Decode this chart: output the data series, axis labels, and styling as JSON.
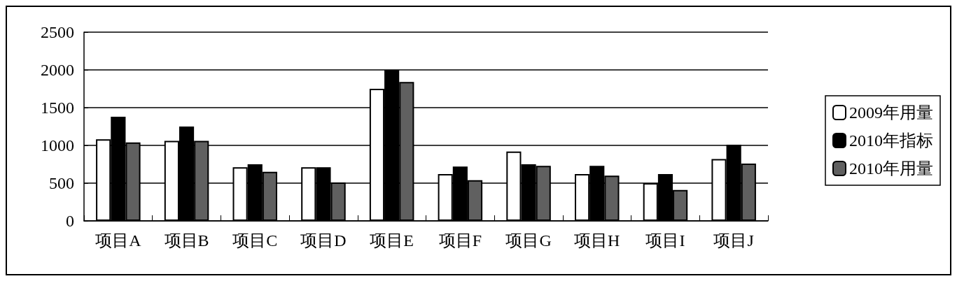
{
  "chart_data": {
    "type": "bar",
    "categories": [
      "项目A",
      "项目B",
      "项目C",
      "项目D",
      "项目E",
      "项目F",
      "项目G",
      "项目H",
      "项目I",
      "项目J"
    ],
    "series": [
      {
        "name": "2009年用量",
        "color": "#ffffff",
        "values": [
          1080,
          1060,
          710,
          710,
          1750,
          620,
          920,
          620,
          500,
          820
        ]
      },
      {
        "name": "2010年指标",
        "color": "#000000",
        "values": [
          1380,
          1250,
          750,
          710,
          2000,
          720,
          750,
          730,
          620,
          1010
        ]
      },
      {
        "name": "2010年用量",
        "color": "#606060",
        "values": [
          1040,
          1060,
          650,
          510,
          1840,
          540,
          730,
          600,
          410,
          760
        ]
      }
    ],
    "ylim": [
      0,
      2500
    ],
    "yticks": [
      0,
      500,
      1000,
      1500,
      2000,
      2500
    ],
    "grid": "y",
    "legend": "right"
  }
}
